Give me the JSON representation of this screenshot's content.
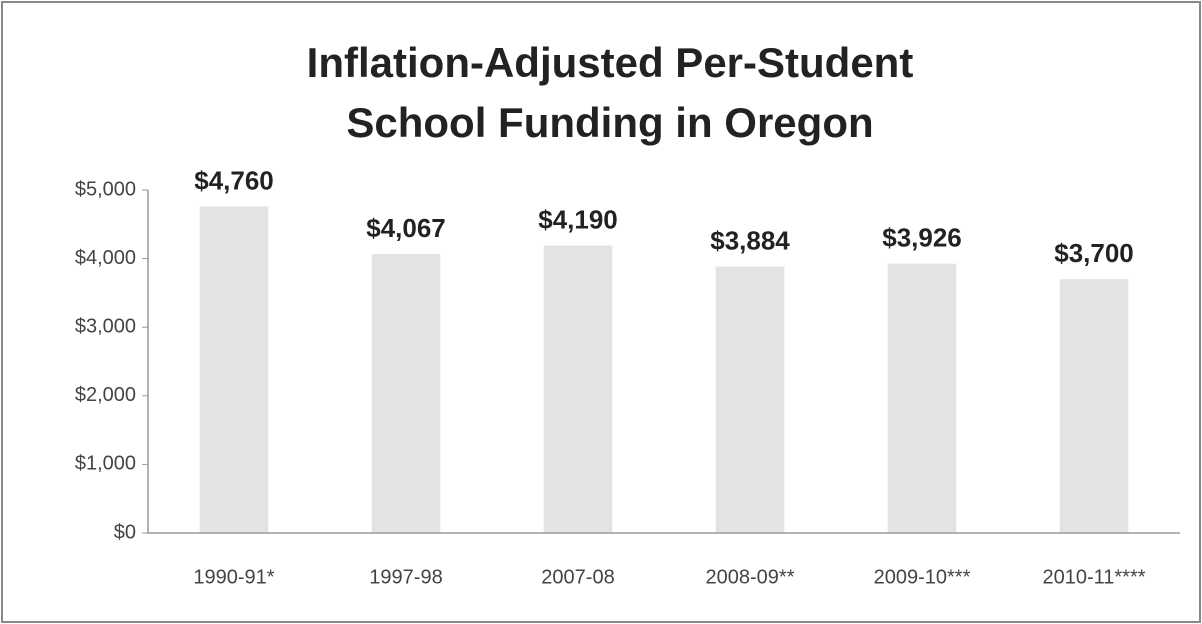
{
  "chart_data": {
    "type": "bar",
    "title": [
      "Inflation-Adjusted Per-Student",
      "School Funding in Oregon"
    ],
    "categories": [
      "1990-91*",
      "1997-98",
      "2007-08",
      "2008-09**",
      "2009-10***",
      "2010-11****"
    ],
    "values": [
      4760,
      4067,
      4190,
      3884,
      3926,
      3700
    ],
    "value_labels": [
      "$4,760",
      "$4,067",
      "$4,190",
      "$3,884",
      "$3,926",
      "$3,700"
    ],
    "color": "#e4e4e4",
    "ylim": [
      0,
      5000
    ],
    "yticks": [
      {
        "value": 0,
        "label": "$0"
      },
      {
        "value": 1000,
        "label": "$1,000"
      },
      {
        "value": 2000,
        "label": "$2,000"
      },
      {
        "value": 3000,
        "label": "$3,000"
      },
      {
        "value": 4000,
        "label": "$4,000"
      },
      {
        "value": 5000,
        "label": "$5,000"
      }
    ],
    "grid": false
  }
}
